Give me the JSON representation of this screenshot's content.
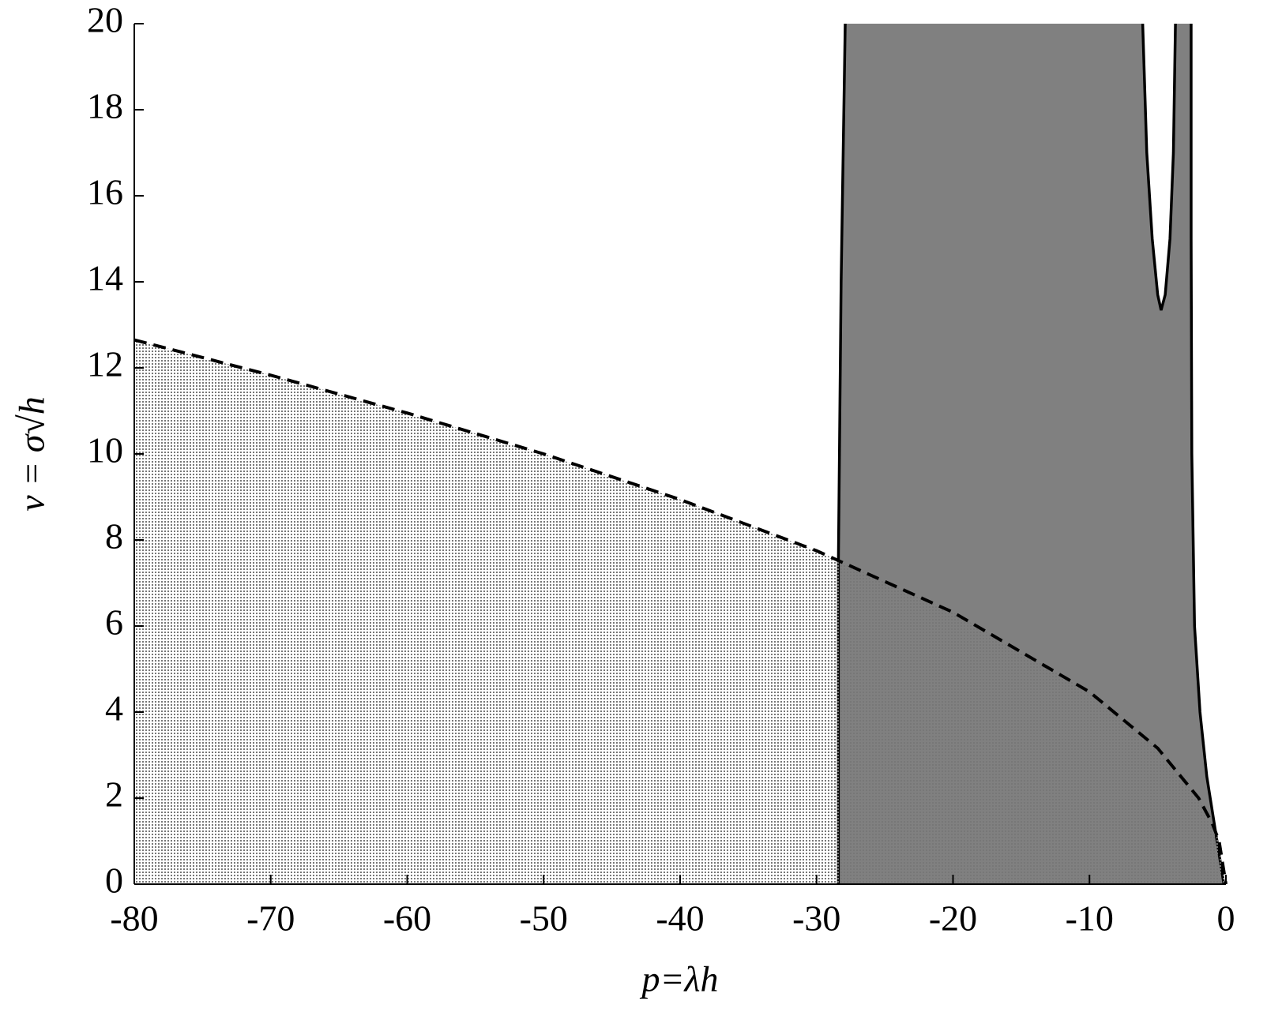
{
  "chart_data": {
    "type": "area",
    "xlabel": "p=λh",
    "ylabel": "v = σ√h",
    "xlim": [
      -80,
      0
    ],
    "ylim": [
      0,
      20
    ],
    "xticks": [
      -80,
      -70,
      -60,
      -50,
      -40,
      -30,
      -20,
      -10,
      0
    ],
    "yticks": [
      0,
      2,
      4,
      6,
      8,
      10,
      12,
      14,
      16,
      18,
      20
    ],
    "series": [
      {
        "color": "#808080",
        "line_style": "solid",
        "fill": "solid",
        "x": [
          -28.4,
          -28.4,
          -28.2,
          -27.9,
          -16,
          -6.1,
          -5.8,
          -5.4,
          -5.0,
          -4.75,
          -4.45,
          -4.1,
          -3.85,
          -3.7,
          -3.1,
          -2.55,
          -2.55,
          -2.5,
          -2.3,
          -1.9,
          -1.4,
          -0.9,
          -0.4,
          -0.15
        ],
        "values": [
          0,
          7.5,
          14,
          20,
          null,
          20,
          17,
          15,
          13.7,
          13.34,
          13.7,
          15,
          17,
          20,
          null,
          20,
          15,
          10,
          6,
          4,
          2.5,
          1.5,
          0.5,
          0
        ]
      },
      {
        "color": "#777777",
        "line_style": "dashed",
        "fill": "dotted",
        "x": [
          -80,
          -70,
          -60,
          -50,
          -40,
          -30,
          -20,
          -10,
          -5,
          -2,
          -1,
          -0.5,
          0
        ],
        "values": [
          12.65,
          11.83,
          10.95,
          10,
          8.94,
          7.75,
          6.32,
          4.47,
          3.16,
          2,
          1.41,
          1,
          0
        ]
      }
    ]
  }
}
